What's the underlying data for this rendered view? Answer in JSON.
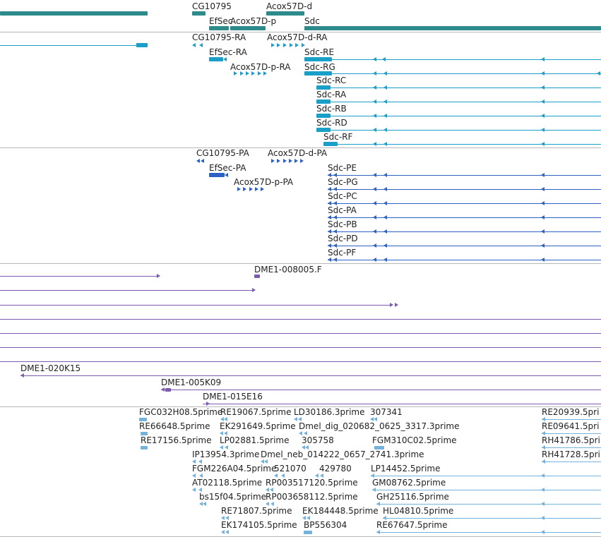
{
  "colors": {
    "gene": "#2e8b8b",
    "transcript": "#1a9fc8",
    "protein": "#2d62c4",
    "clone": "#7b5ab0",
    "est": "#72b2dc",
    "separator": "#b8b8b8",
    "text": "#222222"
  },
  "tracks": {
    "genes": {
      "items": [
        {
          "name": "CG10795"
        },
        {
          "name": "Acox57D-d"
        },
        {
          "name": "EfSec"
        },
        {
          "name": "Acox57D-p"
        },
        {
          "name": "Sdc"
        }
      ]
    },
    "transcripts": {
      "items": [
        {
          "name": "CG10795-RA"
        },
        {
          "name": "Acox57D-d-RA"
        },
        {
          "name": "EfSec-RA"
        },
        {
          "name": "Sdc-RE"
        },
        {
          "name": "Acox57D-p-RA"
        },
        {
          "name": "Sdc-RG"
        },
        {
          "name": "Sdc-RC"
        },
        {
          "name": "Sdc-RA"
        },
        {
          "name": "Sdc-RB"
        },
        {
          "name": "Sdc-RD"
        },
        {
          "name": "Sdc-RF"
        }
      ]
    },
    "proteins": {
      "items": [
        {
          "name": "CG10795-PA"
        },
        {
          "name": "Acox57D-d-PA"
        },
        {
          "name": "EfSec-PA"
        },
        {
          "name": "Acox57D-p-PA"
        },
        {
          "name": "Sdc-PE"
        },
        {
          "name": "Sdc-PG"
        },
        {
          "name": "Sdc-PC"
        },
        {
          "name": "Sdc-PA"
        },
        {
          "name": "Sdc-PB"
        },
        {
          "name": "Sdc-PD"
        },
        {
          "name": "Sdc-PF"
        }
      ]
    },
    "clones": {
      "items": [
        {
          "name": "DME1-008005.F"
        },
        {
          "name": "DME1-020K15"
        },
        {
          "name": "DME1-005K09"
        },
        {
          "name": "DME1-015E16"
        }
      ]
    },
    "ests": {
      "items": [
        {
          "name": "FGC032H08.5prime"
        },
        {
          "name": "RE19067.5prime"
        },
        {
          "name": "LD30186.3prime"
        },
        {
          "name": "307341"
        },
        {
          "name": "RE20939.5pri"
        },
        {
          "name": "RE66648.5prime"
        },
        {
          "name": "EK291649.5prime"
        },
        {
          "name": "Dmel_dig_020682_0625_3317.3prime"
        },
        {
          "name": "RE09641.5pri"
        },
        {
          "name": "RE17156.5prime"
        },
        {
          "name": "LP02881.5prime"
        },
        {
          "name": "305758"
        },
        {
          "name": "FGM310C02.5prime"
        },
        {
          "name": "RH41786.5pri"
        },
        {
          "name": "IP13954.3prime"
        },
        {
          "name": "Dmel_neb_014222_0657_2741.3prime"
        },
        {
          "name": "RH41728.5pri"
        },
        {
          "name": "FGM226A04.5prime"
        },
        {
          "name": "521070"
        },
        {
          "name": "429780"
        },
        {
          "name": "LP14452.5prime"
        },
        {
          "name": "AT02118.5prime"
        },
        {
          "name": "RP003517120.5prime"
        },
        {
          "name": "GM08762.5prime"
        },
        {
          "name": "bs15f04.5prime"
        },
        {
          "name": "RP003658112.5prime"
        },
        {
          "name": "GH25116.5prime"
        },
        {
          "name": "RE71807.5prime"
        },
        {
          "name": "EK184448.5prime"
        },
        {
          "name": "HL04810.5prime"
        },
        {
          "name": "EK174105.5prime"
        },
        {
          "name": "BP556304"
        },
        {
          "name": "RE67647.5prime"
        }
      ]
    }
  }
}
